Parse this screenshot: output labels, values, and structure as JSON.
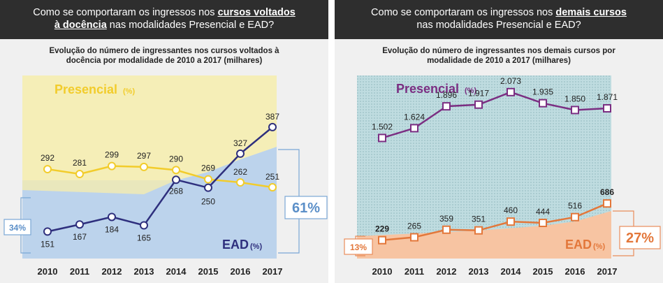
{
  "left": {
    "header": {
      "line1_pre": "Como se comportaram os ingressos nos ",
      "line1_hl": "cursos voltados",
      "line2_hl": "à docência",
      "line2_post": " nas modalidades Presencial e EAD?"
    },
    "subtitle": {
      "line1": "Evolução do número de ingressantes nos cursos voltados à",
      "line2": "docência por modalidade de 2010 a 2017 (milhares)"
    }
  },
  "right": {
    "header": {
      "line1_pre": "Como se comportaram os ingressos nos ",
      "line1_hl": "demais cursos",
      "line2_post": "nas modalidades Presencial e EAD?"
    },
    "subtitle": {
      "line1": "Evolução do número de ingressantes nos demais cursos por",
      "line2": "modalidade de 2010 a 2017 (milhares)"
    }
  },
  "colors": {
    "presencial_yellow": "#f2cc2b",
    "ead_blue": "#2e2f7d",
    "ead_blue_area": "#bcd3ec",
    "presencial_purple": "#7b2e82",
    "ead_orange": "#e3773a",
    "ead_orange_area": "#f7c4a2",
    "pattern_teal": "#bfdce0"
  },
  "chart_data": [
    {
      "type": "line",
      "title": "Evolução do número de ingressantes nos cursos voltados à docência por modalidade de 2010 a 2017 (milhares)",
      "categories": [
        "2010",
        "2011",
        "2012",
        "2013",
        "2014",
        "2015",
        "2016",
        "2017"
      ],
      "series": [
        {
          "name": "Presencial",
          "unit_label": "(%)",
          "values": [
            292,
            281,
            299,
            297,
            290,
            269,
            262,
            251
          ],
          "labels": [
            "292",
            "281",
            "299",
            "297",
            "290",
            "269",
            "262",
            "251"
          ]
        },
        {
          "name": "EAD",
          "unit_label": "(%)",
          "values": [
            151,
            167,
            184,
            165,
            268,
            250,
            327,
            387
          ],
          "labels": [
            "151",
            "167",
            "184",
            "165",
            "268",
            "250",
            "327",
            "387"
          ]
        }
      ],
      "ead_share_start": "34%",
      "ead_share_end": "61%"
    },
    {
      "type": "line",
      "title": "Evolução do número de ingressantes nos demais cursos por modalidade de 2010 a 2017 (milhares)",
      "categories": [
        "2010",
        "2011",
        "2012",
        "2013",
        "2014",
        "2015",
        "2016",
        "2017"
      ],
      "series": [
        {
          "name": "Presencial",
          "unit_label": "(%)",
          "values": [
            1502,
            1624,
            1896,
            1917,
            2073,
            1935,
            1850,
            1871
          ],
          "labels": [
            "1.502",
            "1.624",
            "1.896",
            "1.917",
            "2.073",
            "1.935",
            "1.850",
            "1.871"
          ]
        },
        {
          "name": "EAD",
          "unit_label": "(%)",
          "values": [
            229,
            265,
            359,
            351,
            460,
            444,
            516,
            686
          ],
          "labels": [
            "229",
            "265",
            "359",
            "351",
            "460",
            "444",
            "516",
            "686"
          ]
        }
      ],
      "ead_share_start": "13%",
      "ead_share_end": "27%"
    }
  ]
}
